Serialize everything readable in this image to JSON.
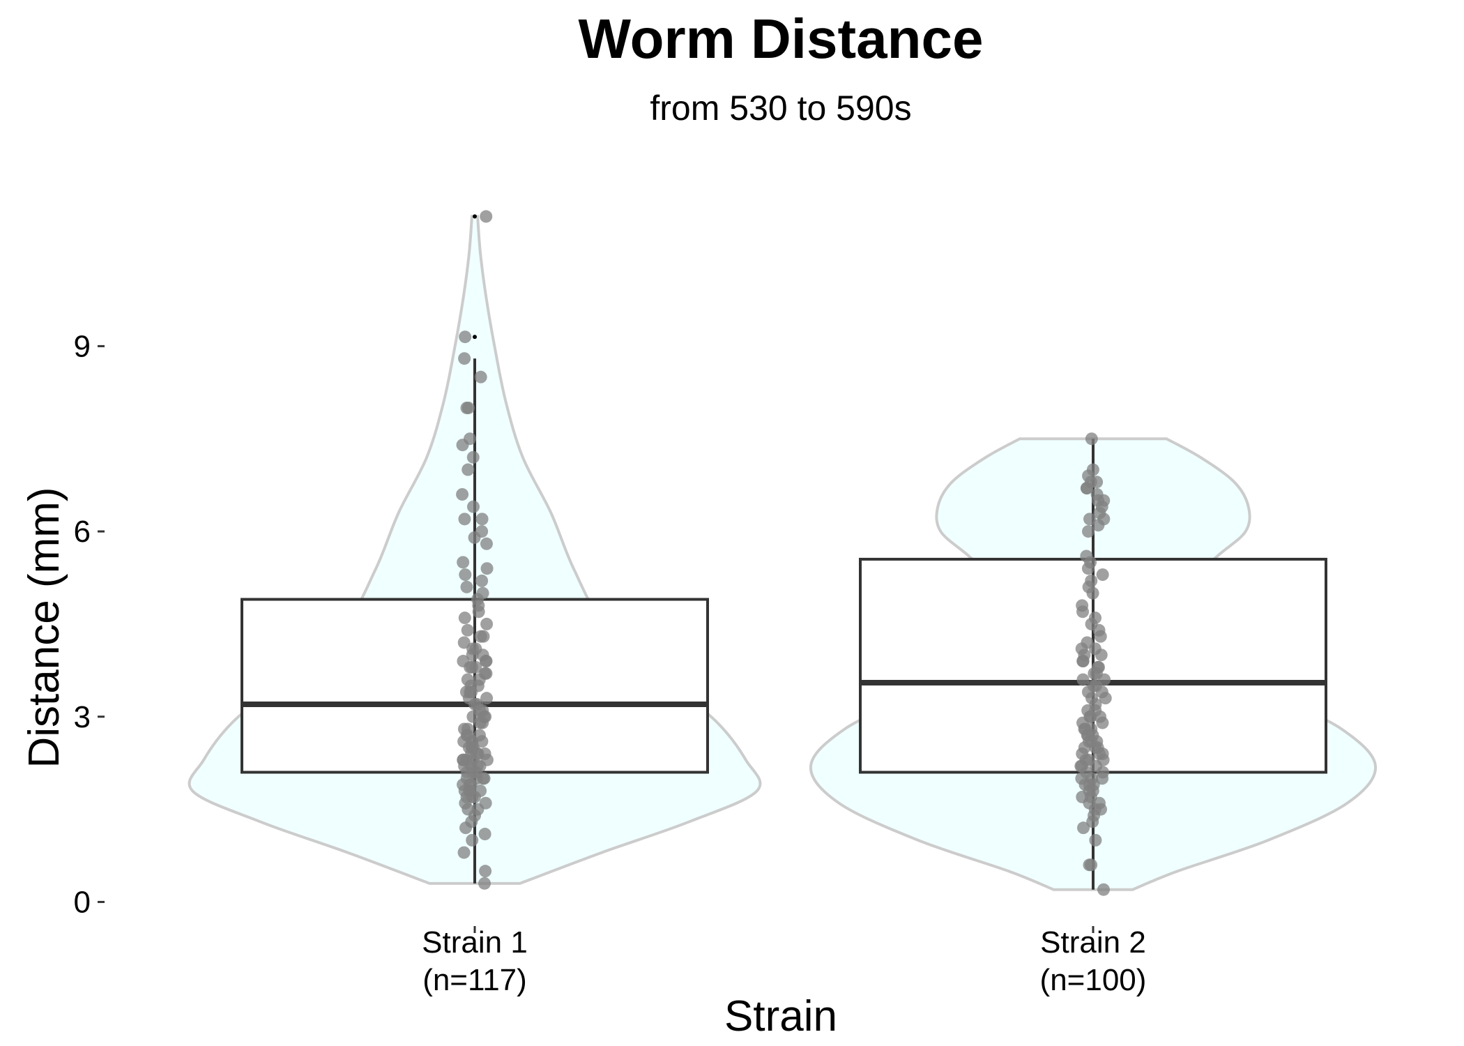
{
  "chart_data": {
    "type": "violin-box",
    "title": "Worm Distance",
    "subtitle": "from 530 to 590s",
    "xlabel": "Strain",
    "ylabel": "Distance (mm)",
    "ylim": [
      -0.3,
      11.5
    ],
    "yticks": [
      0,
      3,
      6,
      9
    ],
    "grid": false,
    "legend": "none",
    "colors": {
      "violin_fill": "#f0ffff",
      "violin_stroke": "#cccccc",
      "box_stroke": "#333333",
      "point": "#808080"
    },
    "groups": [
      {
        "category": "Strain 1",
        "n_label": "(n=117)",
        "box": {
          "q1": 2.1,
          "median": 3.2,
          "q3": 4.9,
          "whisker_low": 0.3,
          "whisker_high": 8.8,
          "outliers": [
            9.15,
            11.1
          ]
        },
        "violin": {
          "y": [
            0.3,
            0.8,
            1.3,
            1.8,
            2.3,
            2.9,
            3.6,
            4.5,
            5.4,
            6.3,
            7.2,
            8.1,
            9.0,
            9.8,
            10.5,
            11.1
          ],
          "density": [
            0.16,
            0.45,
            0.76,
            1.0,
            0.96,
            0.86,
            0.68,
            0.46,
            0.35,
            0.27,
            0.17,
            0.11,
            0.07,
            0.04,
            0.02,
            0.01
          ]
        },
        "points": [
          0.3,
          0.5,
          0.8,
          1.0,
          1.1,
          1.2,
          1.3,
          1.4,
          1.5,
          1.5,
          1.6,
          1.6,
          1.7,
          1.7,
          1.7,
          1.8,
          1.8,
          1.8,
          1.8,
          1.9,
          1.9,
          2.0,
          2.0,
          2.0,
          2.1,
          2.1,
          2.1,
          2.2,
          2.2,
          2.2,
          2.2,
          2.3,
          2.3,
          2.3,
          2.3,
          2.4,
          2.4,
          2.4,
          2.4,
          2.5,
          2.5,
          2.5,
          2.5,
          2.6,
          2.6,
          2.6,
          2.7,
          2.7,
          2.7,
          2.8,
          2.8,
          2.9,
          2.9,
          3.0,
          3.0,
          3.1,
          3.1,
          3.2,
          3.2,
          3.3,
          3.3,
          3.4,
          3.4,
          3.5,
          3.5,
          3.6,
          3.6,
          3.7,
          3.7,
          3.8,
          3.8,
          3.8,
          3.9,
          3.9,
          4.0,
          4.0,
          4.1,
          4.1,
          4.2,
          4.3,
          4.3,
          4.4,
          4.5,
          4.6,
          4.7,
          4.8,
          4.9,
          5.0,
          5.1,
          5.2,
          5.3,
          5.4,
          5.5,
          5.8,
          5.9,
          6.0,
          6.2,
          6.2,
          6.4,
          6.6,
          7.0,
          7.2,
          7.4,
          7.5,
          8.0,
          8.0,
          8.5,
          8.8,
          9.15,
          11.1,
          2.0,
          2.3,
          1.9,
          2.6,
          3.0,
          3.4,
          3.9
        ]
      },
      {
        "category": "Strain 2",
        "n_label": "(n=100)",
        "box": {
          "q1": 2.1,
          "median": 3.55,
          "q3": 5.55,
          "whisker_low": 0.2,
          "whisker_high": 7.5,
          "outliers": []
        },
        "violin": {
          "y": [
            0.2,
            0.5,
            1.0,
            1.6,
            2.2,
            2.8,
            3.4,
            4.0,
            4.6,
            5.2,
            5.6,
            6.0,
            6.4,
            6.8,
            7.2,
            7.5
          ],
          "density": [
            0.14,
            0.3,
            0.62,
            0.9,
            1.0,
            0.88,
            0.62,
            0.42,
            0.33,
            0.35,
            0.44,
            0.54,
            0.55,
            0.5,
            0.38,
            0.26
          ]
        },
        "points": [
          0.2,
          0.6,
          0.6,
          1.2,
          1.3,
          1.4,
          1.5,
          1.5,
          1.6,
          1.7,
          1.7,
          1.8,
          1.8,
          1.9,
          1.9,
          2.0,
          2.0,
          2.1,
          2.1,
          2.2,
          2.2,
          2.3,
          2.3,
          2.4,
          2.4,
          2.4,
          2.5,
          2.5,
          2.6,
          2.6,
          2.7,
          2.7,
          2.8,
          2.8,
          2.9,
          3.0,
          3.0,
          3.1,
          3.2,
          3.3,
          3.4,
          3.5,
          3.5,
          3.6,
          3.7,
          3.8,
          3.8,
          3.9,
          3.9,
          4.0,
          4.1,
          4.2,
          4.3,
          4.5,
          4.6,
          4.7,
          4.8,
          5.0,
          5.2,
          5.3,
          5.5,
          5.6,
          6.0,
          6.1,
          6.2,
          6.3,
          6.4,
          6.5,
          6.6,
          6.7,
          6.8,
          6.8,
          6.9,
          7.0,
          7.5,
          2.0,
          2.3,
          2.5,
          2.9,
          3.1,
          3.3,
          3.7,
          4.1,
          1.6,
          1.9,
          2.2,
          2.6,
          2.8,
          3.0,
          3.4,
          3.6,
          4.0,
          4.4,
          5.1,
          5.4,
          6.2,
          6.5,
          6.7,
          1.0,
          2.7
        ]
      }
    ]
  }
}
